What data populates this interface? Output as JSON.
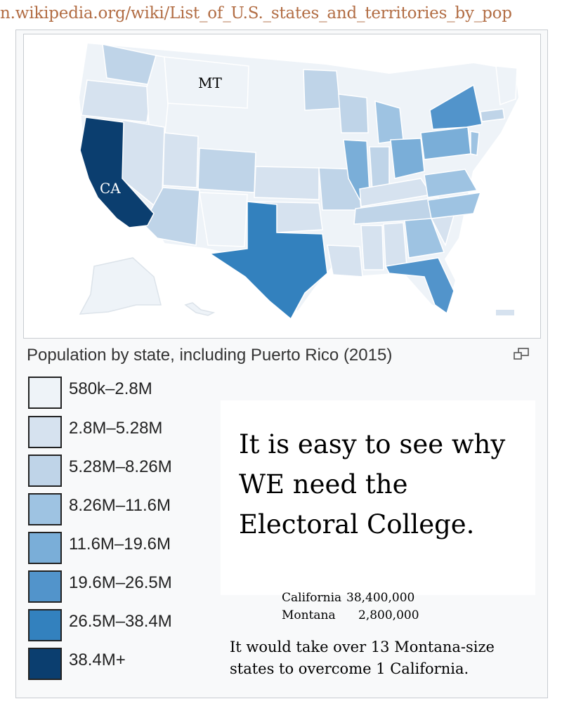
{
  "url_bar": {
    "text": "n.wikipedia.org/wiki/List_of_U.S._states_and_territories_by_pop"
  },
  "map": {
    "labels": {
      "montana": "MT",
      "california": "CA"
    },
    "caption": "Population by state, including Puerto Rico (2015)",
    "expand_icon": "expand-icon"
  },
  "legend": {
    "items": [
      {
        "label": "580k–2.8M",
        "color": "#eef3f8"
      },
      {
        "label": "2.8M–5.28M",
        "color": "#d6e2ef"
      },
      {
        "label": "5.28M–8.26M",
        "color": "#bfd4e8"
      },
      {
        "label": "8.26M–11.6M",
        "color": "#9ec3e2"
      },
      {
        "label": "11.6M–19.6M",
        "color": "#7aaed8"
      },
      {
        "label": "19.6M–26.5M",
        "color": "#5294cb"
      },
      {
        "label": "26.5M–38.4M",
        "color": "#3381be"
      },
      {
        "label": "38.4M+",
        "color": "#0b3e6f"
      }
    ]
  },
  "annotation": {
    "headline": "It is easy to see why WE need the Electoral College.",
    "stats": [
      {
        "name": "California",
        "value": "38,400,000"
      },
      {
        "name": "Montana",
        "value": "2,800,000"
      }
    ],
    "conclusion": "It would take over 13 Montana-size states to overcome 1 California."
  }
}
